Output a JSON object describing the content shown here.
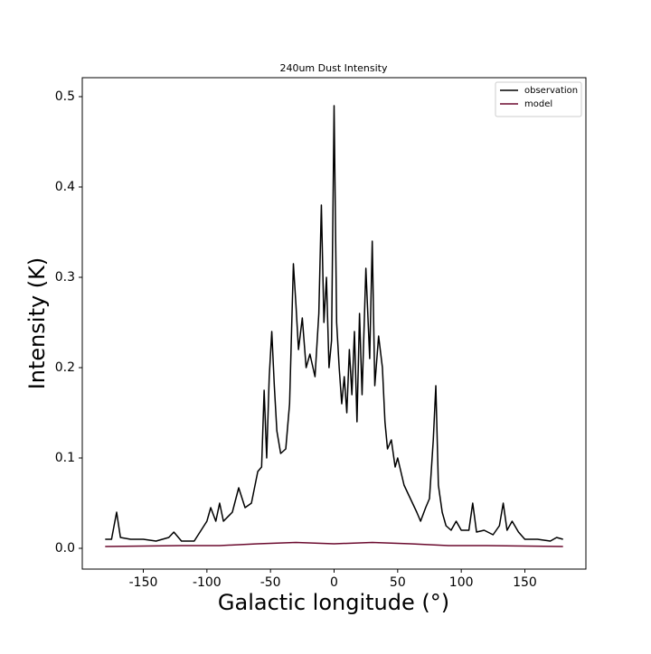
{
  "chart_data": {
    "type": "line",
    "title": "240um Dust Intensity",
    "xlabel": "Galactic longitude (°)",
    "ylabel": "Intensity (K)",
    "xlim": [
      -198,
      198
    ],
    "xticks": [
      -150,
      -100,
      -50,
      0,
      50,
      100,
      150
    ],
    "ylim": [
      -0.023,
      0.521
    ],
    "yticks": [
      {
        "value": 0,
        "label": "0.0"
      },
      0.1,
      0.2,
      0.3,
      0.4,
      0.5
    ],
    "legend": "upper right",
    "grid": false,
    "series": [
      {
        "name": "observation",
        "color": "#000000",
        "x": [
          -180,
          -175,
          -171,
          -168,
          -160,
          -150,
          -140,
          -130,
          -126,
          -120,
          -110,
          -100,
          -97,
          -93,
          -90,
          -87,
          -80,
          -75,
          -70,
          -65,
          -60,
          -57,
          -55,
          -53,
          -51,
          -49,
          -47,
          -45,
          -42,
          -38,
          -35,
          -32,
          -30,
          -28,
          -25,
          -22,
          -19,
          -15,
          -12,
          -10,
          -8,
          -6,
          -4,
          -2,
          0,
          2,
          4,
          6,
          8,
          10,
          12,
          14,
          16,
          18,
          20,
          22,
          25,
          28,
          30,
          32,
          35,
          38,
          40,
          42,
          45,
          48,
          50,
          55,
          60,
          65,
          68,
          72,
          75,
          78,
          80,
          82,
          85,
          88,
          92,
          96,
          100,
          106,
          109,
          112,
          118,
          125,
          130,
          133,
          136,
          140,
          145,
          150,
          160,
          170,
          175,
          180
        ],
        "values": [
          0.01,
          0.01,
          0.04,
          0.012,
          0.01,
          0.01,
          0.008,
          0.012,
          0.018,
          0.008,
          0.008,
          0.03,
          0.045,
          0.03,
          0.05,
          0.03,
          0.04,
          0.067,
          0.045,
          0.05,
          0.085,
          0.09,
          0.175,
          0.1,
          0.19,
          0.24,
          0.18,
          0.13,
          0.105,
          0.11,
          0.16,
          0.315,
          0.27,
          0.22,
          0.255,
          0.2,
          0.215,
          0.19,
          0.26,
          0.38,
          0.25,
          0.3,
          0.2,
          0.23,
          0.49,
          0.25,
          0.2,
          0.16,
          0.19,
          0.15,
          0.22,
          0.17,
          0.24,
          0.14,
          0.26,
          0.17,
          0.31,
          0.21,
          0.34,
          0.18,
          0.235,
          0.2,
          0.14,
          0.11,
          0.12,
          0.09,
          0.1,
          0.07,
          0.055,
          0.04,
          0.03,
          0.045,
          0.055,
          0.12,
          0.18,
          0.07,
          0.04,
          0.025,
          0.02,
          0.03,
          0.02,
          0.02,
          0.05,
          0.018,
          0.02,
          0.015,
          0.025,
          0.05,
          0.02,
          0.03,
          0.018,
          0.01,
          0.01,
          0.008,
          0.012,
          0.01
        ]
      },
      {
        "name": "model",
        "color": "#6b0a2e",
        "x": [
          -180,
          -150,
          -120,
          -90,
          -60,
          -30,
          0,
          30,
          60,
          90,
          120,
          150,
          180
        ],
        "values": [
          0.002,
          0.0025,
          0.003,
          0.003,
          0.005,
          0.0065,
          0.005,
          0.0065,
          0.005,
          0.003,
          0.003,
          0.0025,
          0.002
        ]
      }
    ]
  }
}
